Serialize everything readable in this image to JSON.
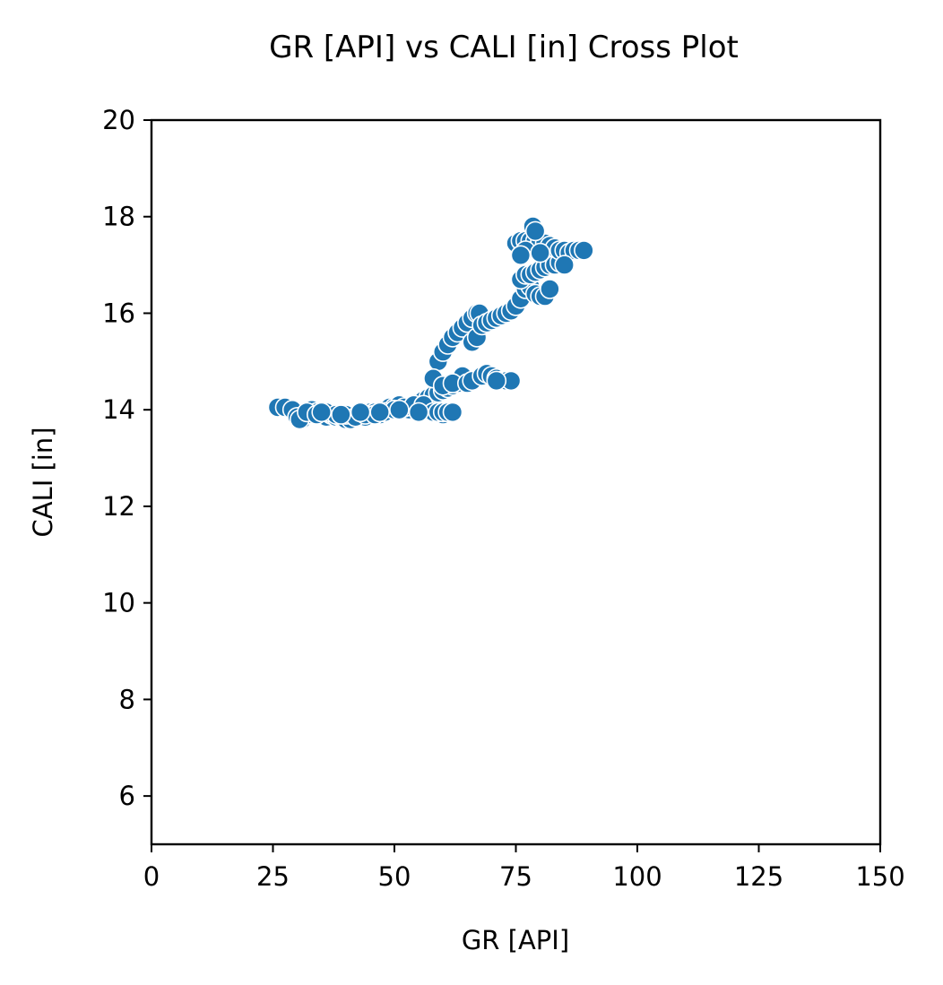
{
  "chart_data": {
    "type": "scatter",
    "title": "GR [API] vs CALI [in] Cross Plot",
    "xlabel": "GR [API]",
    "ylabel": "CALI [in]",
    "xlim": [
      0,
      150
    ],
    "ylim": [
      5,
      20
    ],
    "xticks": [
      "0",
      "25",
      "50",
      "75",
      "100",
      "125",
      "150"
    ],
    "yticks": [
      "6",
      "8",
      "10",
      "12",
      "14",
      "16",
      "18",
      "20"
    ],
    "grid": false,
    "legend": "none",
    "marker_color": "#1f77b4",
    "marker_edge_color": "#ffffff",
    "series": [
      {
        "x": [
          26.0,
          27.5,
          29.0,
          30.0,
          31.0,
          32.0,
          33.0,
          34.0,
          35.0,
          36.0,
          37.0,
          38.0,
          39.0,
          40.0,
          41.0,
          42.0,
          43.0,
          44.0,
          45.0,
          46.0,
          47.0,
          48.0,
          49.0,
          50.0,
          51.0,
          52.0,
          53.0,
          54.0,
          55.0,
          56.0,
          57.0,
          58.0,
          59.0,
          60.0,
          61.0,
          62.0,
          30.5,
          32.0,
          34.0,
          36.0,
          38.0,
          40.0,
          42.0,
          44.0,
          46.0,
          48.0,
          50.0,
          52.0,
          54.0,
          56.0,
          58.0,
          60.0,
          35.0,
          39.0,
          43.0,
          47.0,
          51.0,
          55.0,
          59.0,
          60.0,
          61.0,
          62.0,
          63.0,
          61.5,
          62.5,
          63.5,
          64.0,
          59.0,
          60.0,
          61.0,
          62.0,
          63.0,
          64.0,
          65.0,
          66.0,
          67.0,
          66.0,
          67.0,
          67.5,
          68.0,
          69.0,
          70.0,
          71.0,
          72.0,
          73.0,
          74.0,
          75.0,
          58.0,
          60.0,
          62.0,
          65.0,
          66.0,
          68.0,
          69.0,
          70.0,
          71.0,
          72.0,
          73.0,
          74.0,
          71.0,
          76.0,
          77.0,
          78.0,
          79.0,
          80.0,
          81.0,
          82.0,
          76.0,
          77.0,
          78.0,
          79.0,
          80.0,
          81.0,
          82.0,
          83.0,
          84.0,
          75.0,
          76.0,
          77.0,
          78.0,
          79.0,
          80.0,
          81.0,
          82.0,
          83.0,
          84.0,
          85.0,
          86.0,
          87.0,
          88.0,
          89.0,
          78.5,
          79.0,
          77.0,
          76.0,
          80.0,
          85.0
        ],
        "y": [
          14.05,
          14.05,
          14.0,
          13.85,
          13.8,
          13.9,
          14.0,
          13.95,
          13.9,
          13.85,
          13.9,
          13.85,
          13.85,
          13.8,
          13.8,
          13.85,
          13.9,
          13.85,
          13.95,
          13.95,
          13.9,
          14.0,
          14.05,
          14.05,
          14.1,
          14.0,
          14.0,
          14.05,
          14.15,
          14.2,
          14.25,
          14.3,
          14.35,
          14.4,
          14.45,
          14.5,
          13.8,
          13.95,
          13.9,
          13.95,
          13.9,
          13.9,
          13.85,
          13.9,
          13.9,
          13.95,
          14.0,
          14.05,
          14.1,
          14.1,
          13.95,
          13.9,
          13.95,
          13.9,
          13.95,
          13.95,
          14.0,
          13.95,
          13.95,
          13.95,
          13.95,
          13.95,
          14.55,
          14.55,
          14.6,
          14.65,
          14.7,
          15.0,
          15.2,
          15.35,
          15.5,
          15.6,
          15.7,
          15.8,
          15.9,
          16.0,
          15.4,
          15.5,
          16.0,
          15.75,
          15.8,
          15.85,
          15.9,
          15.95,
          16.0,
          16.05,
          16.15,
          14.65,
          14.5,
          14.55,
          14.55,
          14.6,
          14.7,
          14.75,
          14.7,
          14.65,
          14.6,
          14.6,
          14.6,
          14.6,
          16.3,
          16.5,
          16.55,
          16.4,
          16.35,
          16.35,
          16.5,
          16.7,
          16.8,
          16.8,
          16.85,
          16.9,
          16.95,
          17.0,
          17.0,
          17.05,
          17.45,
          17.5,
          17.5,
          17.5,
          17.5,
          17.5,
          17.45,
          17.4,
          17.35,
          17.3,
          17.3,
          17.25,
          17.3,
          17.3,
          17.3,
          17.8,
          17.7,
          17.3,
          17.2,
          17.25,
          17.0
        ]
      }
    ]
  }
}
